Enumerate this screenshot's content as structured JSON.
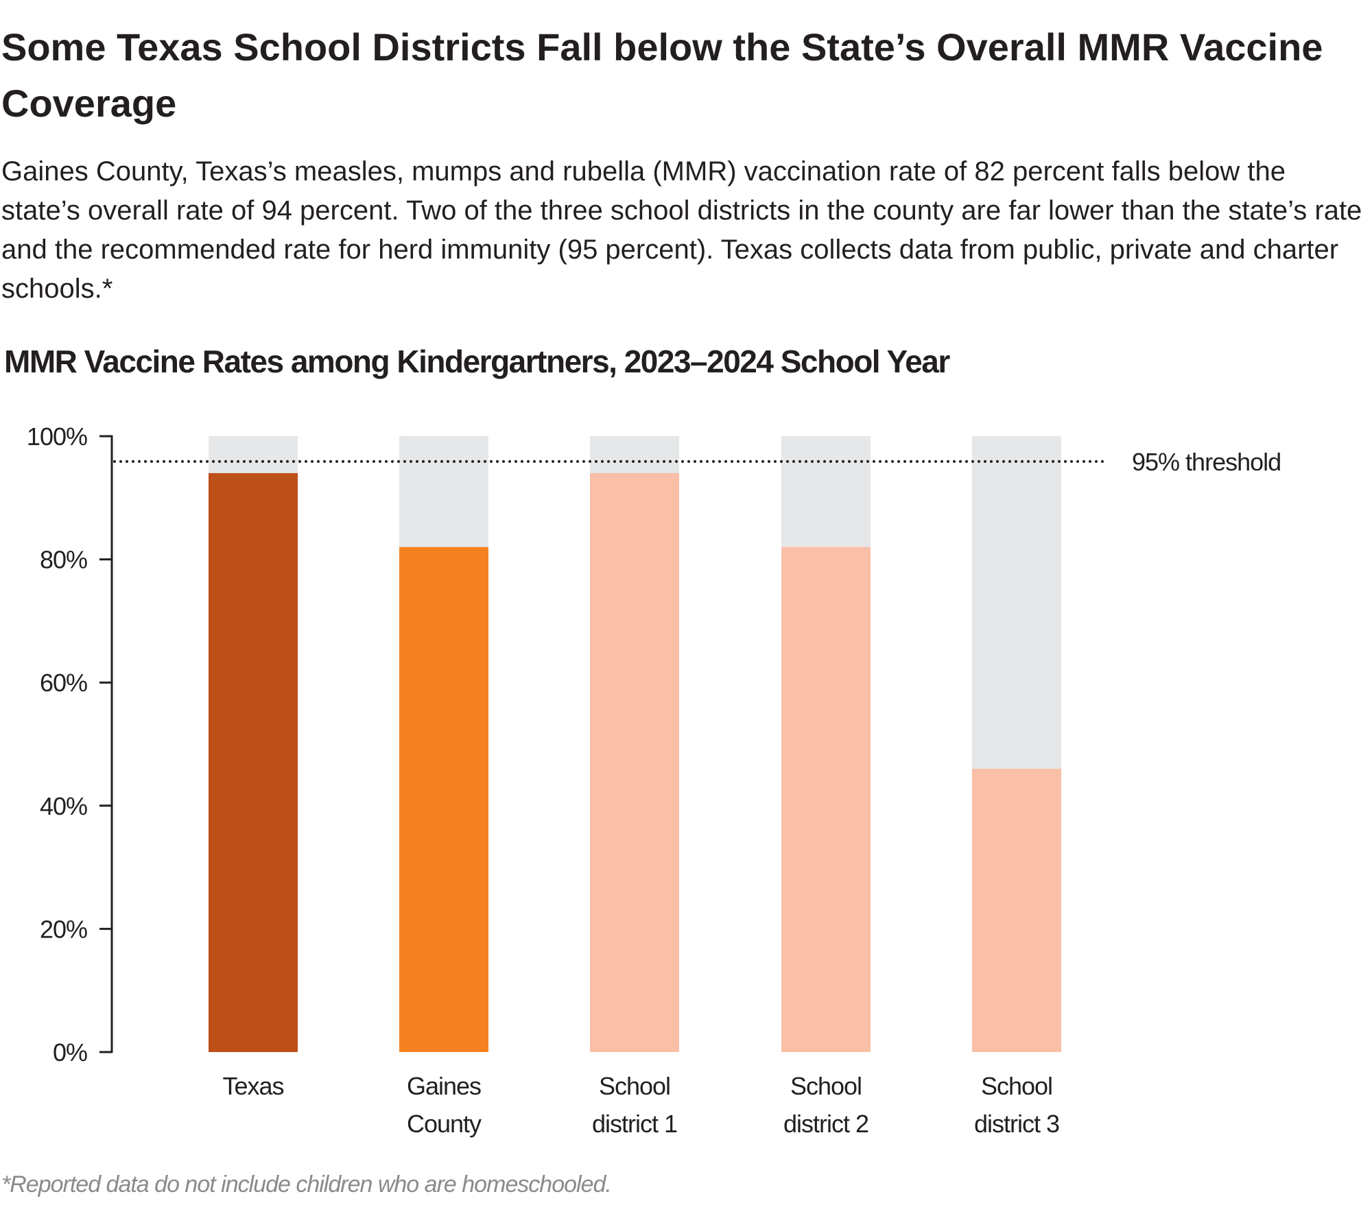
{
  "header": {
    "title": "Some Texas School Districts Fall below the State’s Overall MMR Vaccine Coverage",
    "subtitle": "Gaines County, Texas’s measles, mumps and rubella (MMR) vaccination rate of 82 percent falls below the state’s overall rate of 94 percent. Two of the three school districts in the county are far lower than the state’s rate and the recommended rate for herd immunity (95 percent). Texas collects data from public, private and charter schools.*"
  },
  "footnote": "*Reported data do not include children who are homeschooled.",
  "chart_data": {
    "type": "bar",
    "title": "MMR Vaccine Rates among Kindergartners, 2023–2024 School Year",
    "categories": [
      [
        "Texas"
      ],
      [
        "Gaines",
        "County"
      ],
      [
        "School",
        "district 1"
      ],
      [
        "School",
        "district 2"
      ],
      [
        "School",
        "district 3"
      ]
    ],
    "values": [
      94,
      82,
      94,
      82,
      46
    ],
    "colors": [
      "#bd4f19",
      "#f58220",
      "#f9bfa7",
      "#f9bfa7",
      "#f9bfa7"
    ],
    "background_color": "#e6e7e8",
    "ylim": [
      0,
      100
    ],
    "yticks": [
      0,
      20,
      40,
      60,
      80,
      100
    ],
    "ytick_labels": [
      "0%",
      "20%",
      "40%",
      "60%",
      "80%",
      "100%"
    ],
    "reference_line": {
      "value": 95,
      "label": "95% threshold",
      "style": "dotted"
    },
    "grid": false
  }
}
